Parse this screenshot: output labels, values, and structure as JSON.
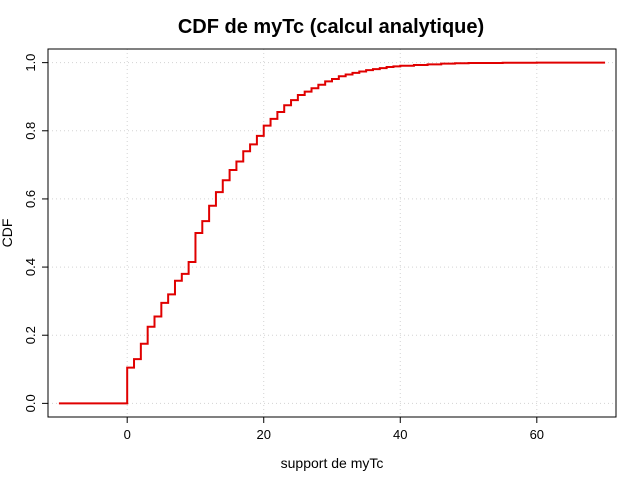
{
  "chart_data": {
    "type": "line",
    "step": true,
    "title": "CDF de myTc (calcul analytique)",
    "xlabel": "support de myTc",
    "ylabel": "CDF",
    "xlim": [
      -11.6,
      71.6
    ],
    "ylim": [
      -0.04,
      1.04
    ],
    "xticks": [
      0,
      20,
      40,
      60
    ],
    "yticks": [
      0.0,
      0.2,
      0.4,
      0.6,
      0.8,
      1.0
    ],
    "xtick_labels": [
      "0",
      "20",
      "40",
      "60"
    ],
    "ytick_labels": [
      "0.0",
      "0.2",
      "0.4",
      "0.6",
      "0.8",
      "1.0"
    ],
    "grid": true,
    "line_color": "#e00000",
    "series": [
      {
        "x": [
          -10,
          0,
          1,
          2,
          3,
          4,
          5,
          6,
          7,
          8,
          9,
          10,
          11,
          12,
          13,
          14,
          15,
          16,
          17,
          18,
          19,
          20,
          21,
          22,
          23,
          24,
          25,
          26,
          27,
          28,
          29,
          30,
          31,
          32,
          33,
          34,
          35,
          36,
          37,
          38,
          39,
          40,
          42,
          44,
          46,
          48,
          50,
          55,
          60,
          70
        ],
        "y": [
          0.0,
          0.105,
          0.13,
          0.175,
          0.225,
          0.255,
          0.295,
          0.32,
          0.36,
          0.38,
          0.415,
          0.5,
          0.535,
          0.58,
          0.62,
          0.655,
          0.685,
          0.71,
          0.74,
          0.76,
          0.785,
          0.815,
          0.835,
          0.855,
          0.875,
          0.89,
          0.905,
          0.915,
          0.925,
          0.935,
          0.945,
          0.952,
          0.96,
          0.965,
          0.97,
          0.974,
          0.978,
          0.981,
          0.984,
          0.987,
          0.989,
          0.991,
          0.993,
          0.995,
          0.997,
          0.998,
          0.999,
          0.9995,
          1.0,
          1.0
        ]
      }
    ]
  }
}
